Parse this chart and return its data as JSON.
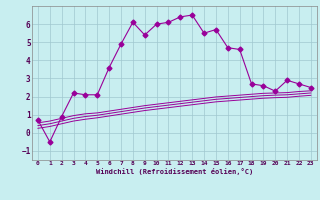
{
  "xlabel": "Windchill (Refroidissement éolien,°C)",
  "background_color": "#c8eef0",
  "grid_color": "#a0c8d0",
  "line_color": "#990099",
  "xlim": [
    -0.5,
    23.5
  ],
  "ylim": [
    -1.5,
    7.0
  ],
  "xticks": [
    0,
    1,
    2,
    3,
    4,
    5,
    6,
    7,
    8,
    9,
    10,
    11,
    12,
    13,
    14,
    15,
    16,
    17,
    18,
    19,
    20,
    21,
    22,
    23
  ],
  "yticks": [
    -1,
    0,
    1,
    2,
    3,
    4,
    5,
    6
  ],
  "series1_x": [
    0,
    1,
    2,
    3,
    4,
    5,
    6,
    7,
    8,
    9,
    10,
    11,
    12,
    13,
    14,
    15,
    16,
    17,
    18,
    19,
    20,
    21,
    22,
    23
  ],
  "series1_y": [
    0.7,
    -0.5,
    0.9,
    2.2,
    2.1,
    2.1,
    3.6,
    4.9,
    6.1,
    5.4,
    6.0,
    6.1,
    6.4,
    6.5,
    5.5,
    5.7,
    4.7,
    4.6,
    2.7,
    2.6,
    2.3,
    2.9,
    2.7,
    2.5
  ],
  "series2_x": [
    0,
    1,
    2,
    3,
    4,
    5,
    6,
    7,
    8,
    9,
    10,
    11,
    12,
    13,
    14,
    15,
    16,
    17,
    18,
    19,
    20,
    21,
    22,
    23
  ],
  "series2_y": [
    0.55,
    0.65,
    0.8,
    0.95,
    1.05,
    1.1,
    1.2,
    1.3,
    1.4,
    1.5,
    1.58,
    1.66,
    1.74,
    1.82,
    1.9,
    1.98,
    2.03,
    2.08,
    2.13,
    2.18,
    2.2,
    2.22,
    2.28,
    2.32
  ],
  "series3_x": [
    0,
    1,
    2,
    3,
    4,
    5,
    6,
    7,
    8,
    9,
    10,
    11,
    12,
    13,
    14,
    15,
    16,
    17,
    18,
    19,
    20,
    21,
    22,
    23
  ],
  "series3_y": [
    0.4,
    0.5,
    0.65,
    0.8,
    0.9,
    0.97,
    1.07,
    1.17,
    1.27,
    1.37,
    1.45,
    1.53,
    1.61,
    1.69,
    1.77,
    1.85,
    1.9,
    1.95,
    2.0,
    2.05,
    2.08,
    2.1,
    2.15,
    2.2
  ],
  "series4_x": [
    0,
    1,
    2,
    3,
    4,
    5,
    6,
    7,
    8,
    9,
    10,
    11,
    12,
    13,
    14,
    15,
    16,
    17,
    18,
    19,
    20,
    21,
    22,
    23
  ],
  "series4_y": [
    0.25,
    0.35,
    0.5,
    0.65,
    0.75,
    0.83,
    0.93,
    1.03,
    1.13,
    1.23,
    1.31,
    1.39,
    1.47,
    1.55,
    1.63,
    1.71,
    1.76,
    1.81,
    1.86,
    1.91,
    1.94,
    1.96,
    2.02,
    2.07
  ]
}
